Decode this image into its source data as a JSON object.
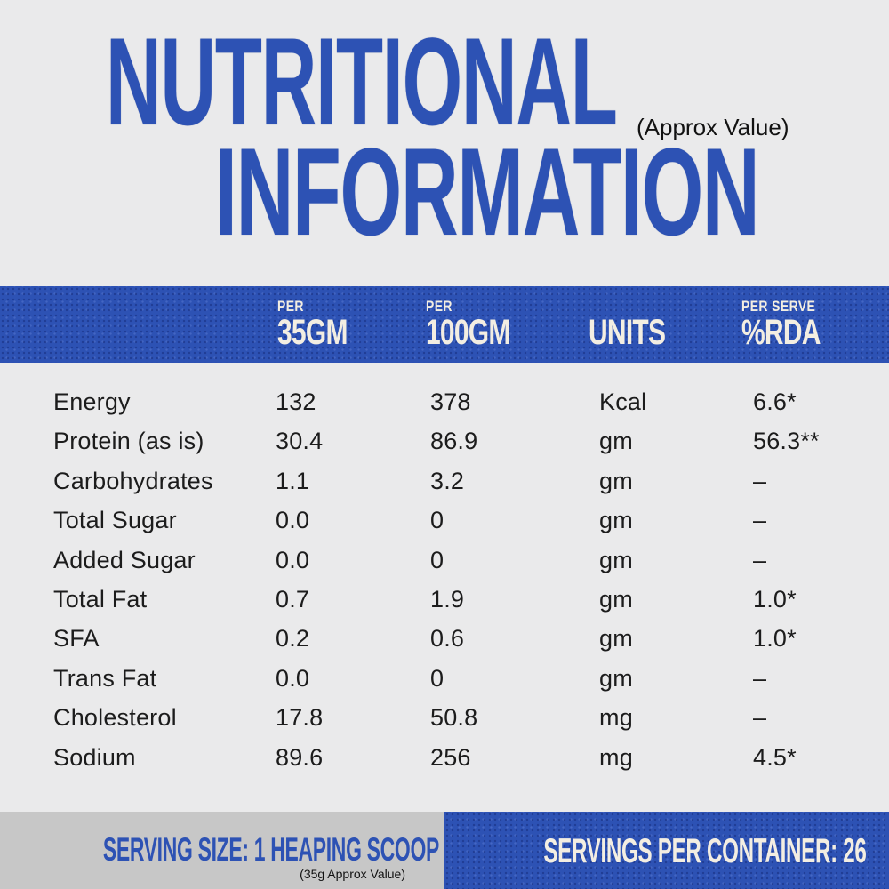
{
  "header": {
    "title_line1": "NUTRITIONAL",
    "title_line2": "INFORMATION",
    "approx_note": "(Approx Value)"
  },
  "table": {
    "columns": [
      {
        "sub": "PER",
        "main": "35GM"
      },
      {
        "sub": "PER",
        "main": "100GM"
      },
      {
        "sub": "",
        "main": "UNITS"
      },
      {
        "sub": "PER SERVE",
        "main": "%RDA"
      }
    ],
    "rows": [
      {
        "name": "Energy",
        "per35": "132",
        "per100": "378",
        "units": "Kcal",
        "rda": "6.6*"
      },
      {
        "name": "Protein (as is)",
        "per35": "30.4",
        "per100": "86.9",
        "units": "gm",
        "rda": "56.3**"
      },
      {
        "name": "Carbohydrates",
        "per35": "1.1",
        "per100": "3.2",
        "units": "gm",
        "rda": "–"
      },
      {
        "name": "Total Sugar",
        "per35": "0.0",
        "per100": "0",
        "units": "gm",
        "rda": "–"
      },
      {
        "name": "Added Sugar",
        "per35": "0.0",
        "per100": "0",
        "units": "gm",
        "rda": "–"
      },
      {
        "name": "Total Fat",
        "per35": "0.7",
        "per100": "1.9",
        "units": "gm",
        "rda": "1.0*"
      },
      {
        "name": "SFA",
        "per35": "0.2",
        "per100": "0.6",
        "units": "gm",
        "rda": "1.0*"
      },
      {
        "name": "Trans Fat",
        "per35": "0.0",
        "per100": "0",
        "units": "gm",
        "rda": "–"
      },
      {
        "name": "Cholesterol",
        "per35": "17.8",
        "per100": "50.8",
        "units": "mg",
        "rda": "–"
      },
      {
        "name": "Sodium",
        "per35": "89.6",
        "per100": "256",
        "units": "mg",
        "rda": "4.5*"
      }
    ]
  },
  "footer": {
    "serving_size": "SERVING SIZE: 1 HEAPING SCOOP",
    "serving_note": "(35g Approx Value)",
    "servings_per_container": "SERVINGS PER CONTAINER: 26"
  },
  "colors": {
    "brand_blue": "#2d52b4",
    "cream_text": "#f3eee2",
    "page_background": "#eaeaeb",
    "footer_gray": "#c7c7c7",
    "body_text": "#1c1c1c"
  }
}
